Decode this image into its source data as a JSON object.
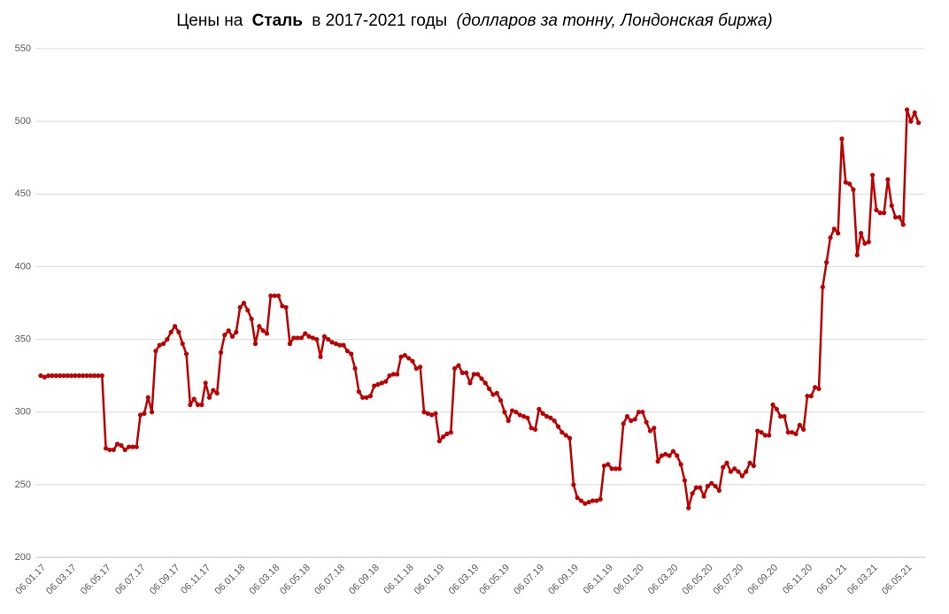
{
  "chart_data": {
    "type": "line",
    "title": {
      "prefix": "Цены на",
      "bold": "Сталь",
      "middle": "в 2017-2021 годы",
      "italic": "(долларов за тонну, Лондонская биржа)"
    },
    "color": "#c00000",
    "grid": true,
    "ylim": [
      200,
      550
    ],
    "yticks": [
      200,
      250,
      300,
      350,
      400,
      450,
      500,
      550
    ],
    "categories": [
      "06.01.17",
      null,
      null,
      null,
      null,
      null,
      null,
      null,
      "06.03.17",
      null,
      null,
      null,
      null,
      null,
      null,
      null,
      null,
      "06.05.17",
      null,
      null,
      null,
      null,
      null,
      null,
      null,
      null,
      "06.07.17",
      null,
      null,
      null,
      null,
      null,
      null,
      null,
      null,
      "06.09.17",
      null,
      null,
      null,
      null,
      null,
      null,
      null,
      "06.11.17",
      null,
      null,
      null,
      null,
      null,
      null,
      null,
      null,
      "06.01.18",
      null,
      null,
      null,
      null,
      null,
      null,
      null,
      null,
      "06.03.18",
      null,
      null,
      null,
      null,
      null,
      null,
      null,
      "06.05.18",
      null,
      null,
      null,
      null,
      null,
      null,
      null,
      null,
      "06.07.18",
      null,
      null,
      null,
      null,
      null,
      null,
      null,
      null,
      "06.09.18",
      null,
      null,
      null,
      null,
      null,
      null,
      null,
      null,
      "06.11.18",
      null,
      null,
      null,
      null,
      null,
      null,
      null,
      "06.01.19",
      null,
      null,
      null,
      null,
      null,
      null,
      null,
      null,
      "06.03.19",
      null,
      null,
      null,
      null,
      null,
      null,
      null,
      "06.05.19",
      null,
      null,
      null,
      null,
      null,
      null,
      null,
      null,
      "06.07.19",
      null,
      null,
      null,
      null,
      null,
      null,
      null,
      null,
      "06.09.19",
      null,
      null,
      null,
      null,
      null,
      null,
      null,
      null,
      "06.11.19",
      null,
      null,
      null,
      null,
      null,
      null,
      null,
      "06.01.20",
      null,
      null,
      null,
      null,
      null,
      null,
      null,
      null,
      "06.03.20",
      null,
      null,
      null,
      null,
      null,
      null,
      null,
      null,
      "06.05.20",
      null,
      null,
      null,
      null,
      null,
      null,
      null,
      "06.07.20",
      null,
      null,
      null,
      null,
      null,
      null,
      null,
      null,
      "06.09.20",
      null,
      null,
      null,
      null,
      null,
      null,
      null,
      null,
      "06.11.20",
      null,
      null,
      null,
      null,
      null,
      null,
      null,
      null,
      "06.01.21",
      null,
      null,
      null,
      null,
      null,
      null,
      null,
      "06.03.21",
      null,
      null,
      null,
      null,
      null,
      null,
      null,
      null,
      "06.05.21",
      null,
      null,
      null
    ],
    "values": [
      325,
      324,
      325,
      325,
      325,
      325,
      325,
      325,
      325,
      325,
      325,
      325,
      325,
      325,
      325,
      325,
      325,
      275,
      274,
      274,
      278,
      277,
      274,
      276,
      276,
      276,
      298,
      299,
      310,
      300,
      342,
      346,
      347,
      350,
      355,
      359,
      355,
      347,
      340,
      305,
      309,
      305,
      305,
      320,
      310,
      315,
      313,
      341,
      353,
      356,
      352,
      355,
      372,
      375,
      370,
      364,
      347,
      359,
      356,
      354,
      380,
      380,
      380,
      373,
      372,
      347,
      351,
      351,
      351,
      354,
      352,
      351,
      350,
      338,
      352,
      350,
      348,
      347,
      346,
      346,
      342,
      340,
      330,
      314,
      310,
      310,
      311,
      318,
      319,
      320,
      321,
      325,
      326,
      326,
      338,
      339,
      337,
      335,
      330,
      331,
      300,
      299,
      298,
      299,
      280,
      283,
      285,
      286,
      330,
      332,
      327,
      327,
      320,
      326,
      326,
      323,
      320,
      316,
      312,
      313,
      308,
      300,
      294,
      301,
      300,
      298,
      297,
      296,
      289,
      288,
      302,
      299,
      297,
      296,
      294,
      290,
      286,
      284,
      282,
      250,
      241,
      239,
      237,
      238,
      239,
      239,
      240,
      263,
      264,
      261,
      261,
      261,
      292,
      297,
      294,
      295,
      300,
      300,
      293,
      287,
      289,
      266,
      270,
      271,
      270,
      273,
      270,
      264,
      253,
      234,
      244,
      248,
      248,
      242,
      249,
      251,
      249,
      246,
      262,
      265,
      259,
      261,
      259,
      256,
      259,
      265,
      263,
      287,
      286,
      284,
      284,
      305,
      302,
      297,
      297,
      286,
      286,
      285,
      291,
      288,
      311,
      311,
      317,
      316,
      386,
      403,
      420,
      426,
      423,
      488,
      458,
      457,
      453,
      408,
      423,
      416,
      417,
      463,
      439,
      437,
      437,
      460,
      442,
      434,
      434,
      429,
      508,
      500,
      506,
      499
    ]
  }
}
